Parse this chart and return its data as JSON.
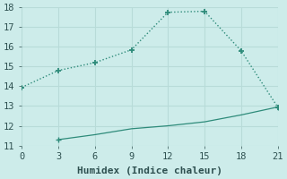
{
  "line1_x": [
    0,
    3,
    6,
    9,
    12,
    15,
    18,
    21
  ],
  "line1_y": [
    13.95,
    14.8,
    15.2,
    15.85,
    17.75,
    17.8,
    15.8,
    12.95
  ],
  "line2_x": [
    3,
    6,
    9,
    12,
    15,
    18,
    21
  ],
  "line2_y": [
    11.3,
    11.55,
    11.85,
    12.0,
    12.2,
    12.55,
    12.95
  ],
  "line_color": "#2e8b7a",
  "xlabel": "Humidex (Indice chaleur)",
  "xlim": [
    0,
    21
  ],
  "ylim": [
    11,
    18
  ],
  "xticks": [
    0,
    3,
    6,
    9,
    12,
    15,
    18,
    21
  ],
  "yticks": [
    11,
    12,
    13,
    14,
    15,
    16,
    17,
    18
  ],
  "bg_color": "#cdecea",
  "grid_color": "#b8dbd8",
  "font_color": "#2e5050",
  "xlabel_fontsize": 8,
  "tick_fontsize": 7.5
}
